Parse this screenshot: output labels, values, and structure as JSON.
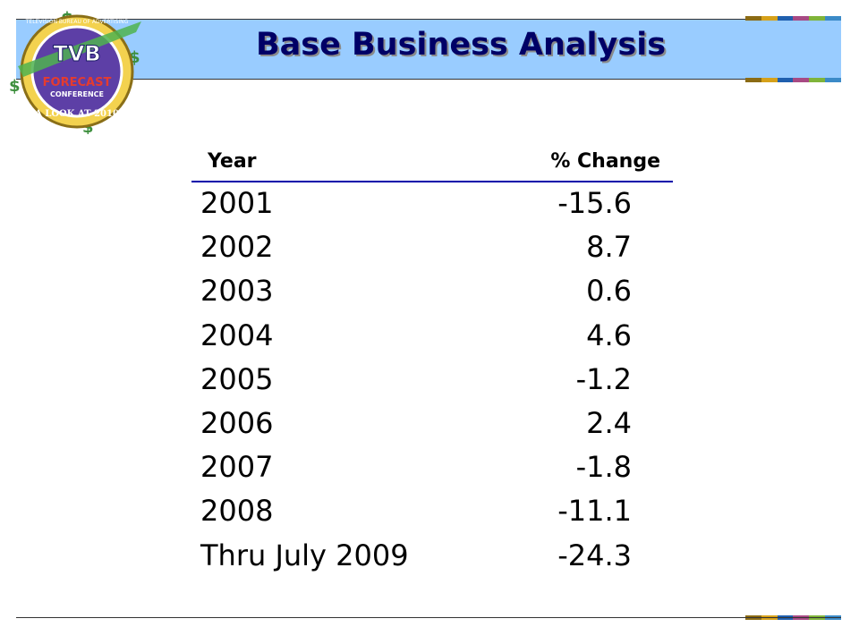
{
  "slide": {
    "title": "Base Business Analysis"
  },
  "logo": {
    "brand": "TVB",
    "arc_text": "TELEVISION BUREAU OF ADVERTISING",
    "line1": "FORECAST",
    "line2": "CONFERENCE",
    "bottom_text": "A LOOK AT 2010"
  },
  "table": {
    "headers": {
      "year": "Year",
      "change": "% Change"
    },
    "rows": [
      {
        "year": "2001",
        "change": "-15.6"
      },
      {
        "year": "2002",
        "change": "8.7"
      },
      {
        "year": "2003",
        "change": "0.6"
      },
      {
        "year": "2004",
        "change": "4.6"
      },
      {
        "year": "2005",
        "change": "-1.2"
      },
      {
        "year": "2006",
        "change": "2.4"
      },
      {
        "year": "2007",
        "change": "-1.8"
      },
      {
        "year": "2008",
        "change": "-11.1"
      },
      {
        "year": "Thru July 2009",
        "change": "-24.3"
      }
    ]
  },
  "colors": {
    "title_band": "#99ccff",
    "title_text": "#000066",
    "header_rule": "#0000aa",
    "stripe": [
      "#8b6b14",
      "#d6a11a",
      "#1f5fae",
      "#a84a84",
      "#7fb43a",
      "#3b8ac7"
    ]
  }
}
